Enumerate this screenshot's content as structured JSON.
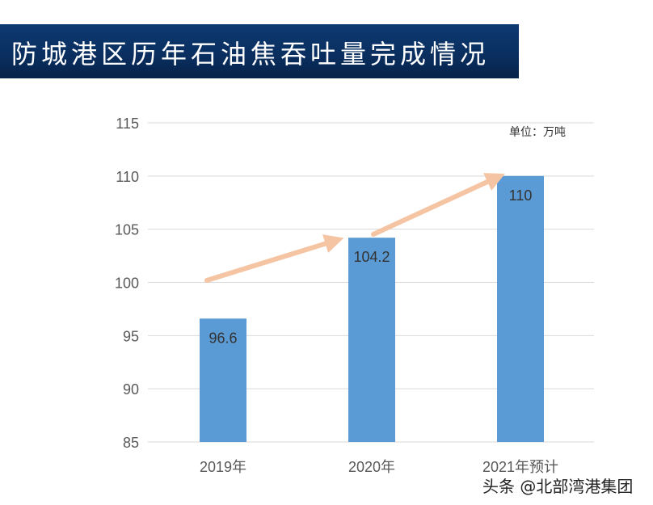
{
  "title": "防城港区历年石油焦吞吐量完成情况",
  "watermark": "头条 @北部湾港集团",
  "chart_data": {
    "type": "bar",
    "title": "防城港区历年石油焦吞吐量完成情况",
    "unit_label": "单位：万吨",
    "categories": [
      "2019年",
      "2020年",
      "2021年预计"
    ],
    "values": [
      96.6,
      104.2,
      110
    ],
    "data_labels": [
      "96.6",
      "104.2",
      "110"
    ],
    "ylim": [
      85,
      115
    ],
    "yticks": [
      85,
      90,
      95,
      100,
      105,
      110,
      115
    ],
    "grid": true,
    "bar_color": "#5b9bd5",
    "arrow_color": "#f4c4a3",
    "annotations": "trend arrows between bars"
  }
}
